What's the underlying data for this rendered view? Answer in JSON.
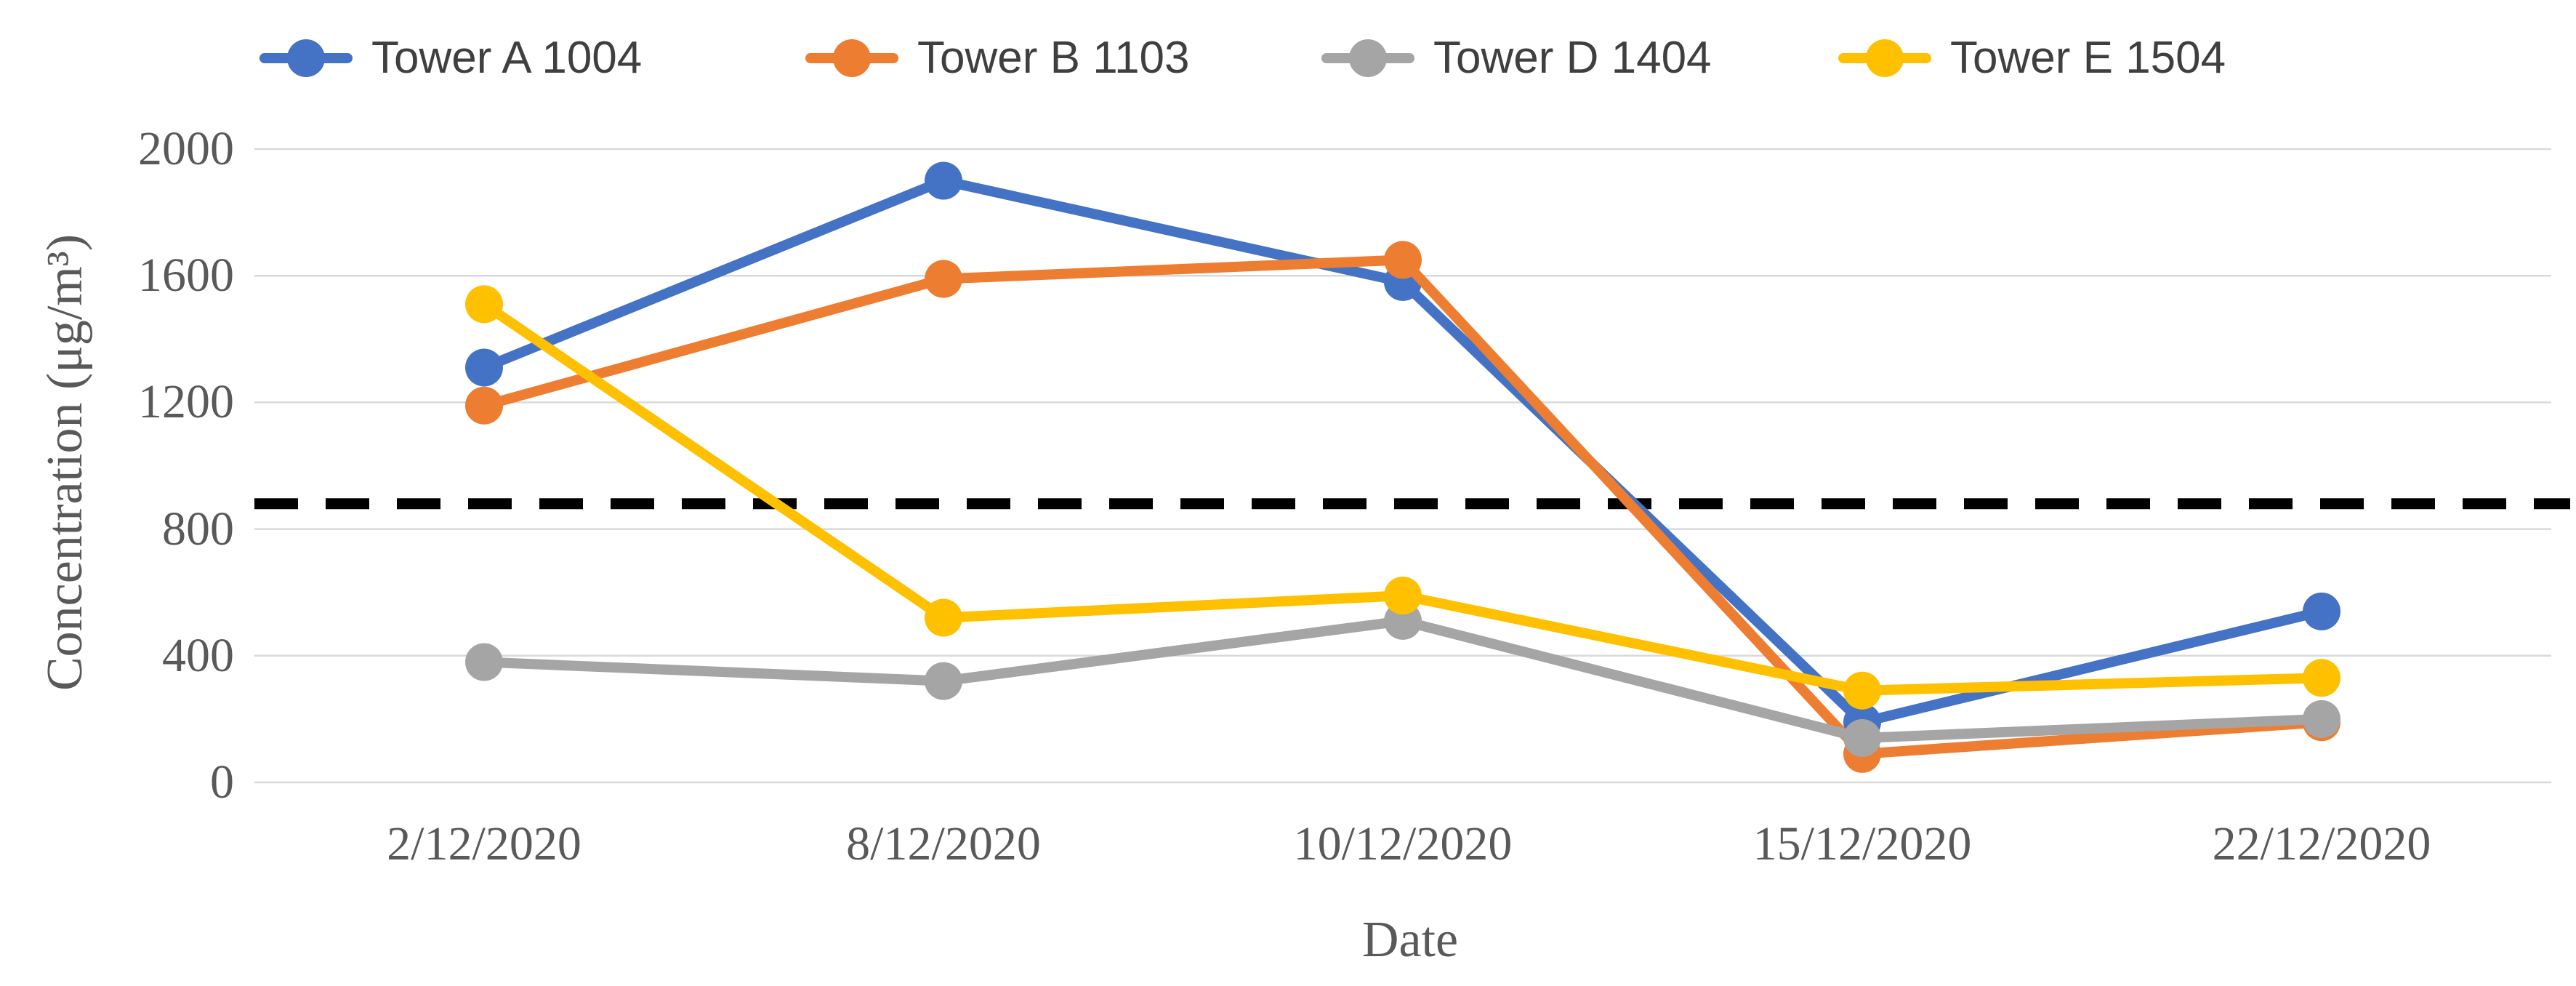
{
  "chart_data": {
    "type": "line",
    "title": "",
    "x_categories": [
      "2/12/2020",
      "8/12/2020",
      "10/12/2020",
      "15/12/2020",
      "22/12/2020"
    ],
    "xlabel": "Date",
    "ylabel": "Concentration (μg/m³)",
    "ylim": [
      0,
      2000
    ],
    "yticks": [
      0,
      400,
      800,
      1200,
      1600,
      2000
    ],
    "grid": true,
    "legend_position": "top",
    "marker": "circle",
    "series": [
      {
        "name": "Tower A 1004",
        "color": "#4472C4",
        "values": [
          1310,
          1900,
          1580,
          190,
          540
        ]
      },
      {
        "name": "Tower B 1103",
        "color": "#ED7D31",
        "values": [
          1190,
          1590,
          1650,
          90,
          190
        ]
      },
      {
        "name": "Tower D 1404",
        "color": "#A5A5A5",
        "values": [
          380,
          320,
          510,
          140,
          200
        ]
      },
      {
        "name": "Tower E 1504",
        "color": "#FFC000",
        "values": [
          1510,
          520,
          590,
          290,
          330
        ]
      }
    ],
    "threshold_line": {
      "value": 880,
      "color": "#000000",
      "style": "dashed"
    }
  },
  "styles": {
    "gridline_color": "#D9D9D9",
    "axis_text_color": "#595959",
    "legend_text_color": "#3F3F3F",
    "background_color": "#FFFFFF"
  }
}
